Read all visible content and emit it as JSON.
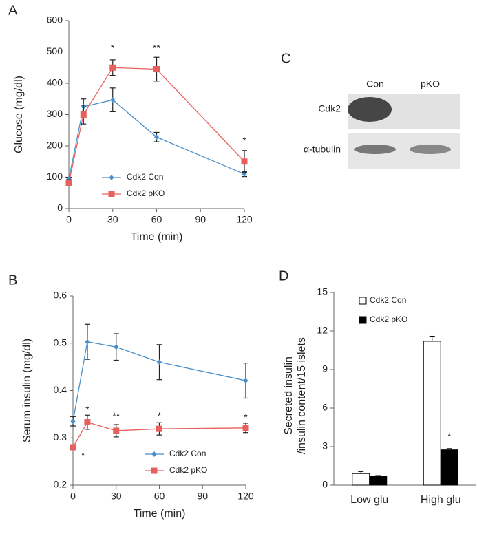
{
  "chart_data": [
    {
      "type": "line",
      "panel": "A",
      "xlabel": "Time (min)",
      "ylabel": "Glucose (mg/dl)",
      "x": [
        0,
        10,
        30,
        60,
        120
      ],
      "xlim": [
        0,
        120
      ],
      "xticks": [
        0,
        30,
        60,
        90,
        120
      ],
      "ylim": [
        0,
        600
      ],
      "yticks": [
        0,
        100,
        200,
        300,
        400,
        500,
        600
      ],
      "series": [
        {
          "name": "Cdk2 Con",
          "color": "#4a8fcb",
          "marker": "diamond",
          "values": [
            95,
            325,
            347,
            228,
            110
          ],
          "errors": [
            5,
            25,
            38,
            15,
            8
          ]
        },
        {
          "name": "Cdk2 pKO",
          "color": "#e8605e",
          "marker": "square",
          "values": [
            82,
            300,
            450,
            445,
            150
          ],
          "errors": [
            10,
            30,
            25,
            38,
            35
          ]
        }
      ],
      "annotations": [
        {
          "x": 30,
          "y": 510,
          "text": "*"
        },
        {
          "x": 60,
          "y": 510,
          "text": "**"
        },
        {
          "x": 120,
          "y": 215,
          "text": "*"
        }
      ]
    },
    {
      "type": "line",
      "panel": "B",
      "xlabel": "Time (min)",
      "ylabel": "Serum insulin  (mg/dl)",
      "x": [
        0,
        10,
        30,
        60,
        120
      ],
      "xlim": [
        0,
        120
      ],
      "xticks": [
        0,
        30,
        60,
        90,
        120
      ],
      "ylim": [
        0.2,
        0.6
      ],
      "yticks": [
        0.2,
        0.3,
        0.4,
        0.5,
        0.6
      ],
      "series": [
        {
          "name": "Cdk2 Con",
          "color": "#4a8fcb",
          "marker": "diamond",
          "values": [
            0.335,
            0.503,
            0.492,
            0.46,
            0.421
          ],
          "errors": [
            0.01,
            0.037,
            0.028,
            0.037,
            0.037
          ]
        },
        {
          "name": "Cdk2 pKO",
          "color": "#e8605e",
          "marker": "square",
          "values": [
            0.28,
            0.333,
            0.315,
            0.319,
            0.321
          ],
          "errors": [
            0.005,
            0.015,
            0.013,
            0.013,
            0.01
          ]
        }
      ],
      "annotations": [
        {
          "x": 7,
          "y": 0.262,
          "text": "*"
        },
        {
          "x": 10,
          "y": 0.358,
          "text": "*"
        },
        {
          "x": 30,
          "y": 0.345,
          "text": "**"
        },
        {
          "x": 60,
          "y": 0.345,
          "text": "*"
        },
        {
          "x": 120,
          "y": 0.342,
          "text": "*"
        }
      ]
    },
    {
      "type": "blot",
      "panel": "C",
      "columns": [
        "Con",
        "pKO"
      ],
      "rows": [
        "Cdk2",
        "α-tubulin"
      ]
    },
    {
      "type": "bar",
      "panel": "D",
      "ylabel": [
        "Secreted insulin",
        "/insulin content/15 islets"
      ],
      "categories": [
        "Low glu",
        "High glu"
      ],
      "ylim": [
        0,
        15
      ],
      "yticks": [
        0,
        3,
        6,
        9,
        12,
        15
      ],
      "series": [
        {
          "name": "Cdk2 Con",
          "color": "#ffffff",
          "values": [
            0.9,
            11.2
          ],
          "errors": [
            0.15,
            0.4
          ]
        },
        {
          "name": "Cdk2 pKO",
          "color": "#000000",
          "values": [
            0.7,
            2.75
          ],
          "errors": [
            0.05,
            0.1
          ]
        }
      ],
      "annotations": [
        {
          "category": 1,
          "series": 1,
          "y": 3.8,
          "text": "*"
        }
      ]
    }
  ]
}
